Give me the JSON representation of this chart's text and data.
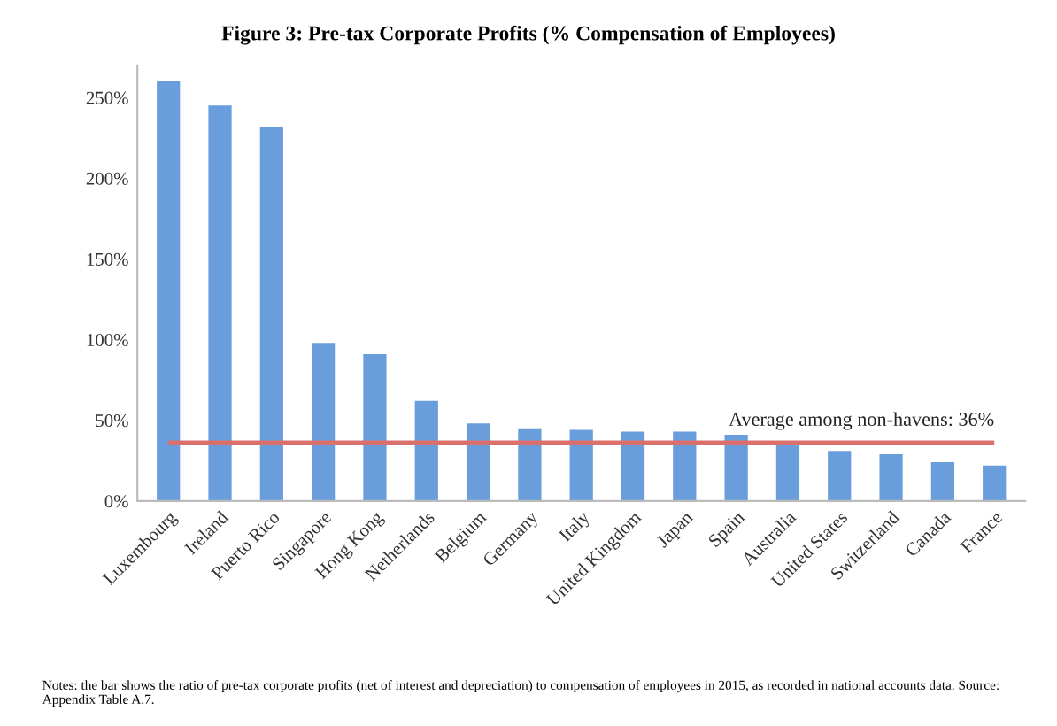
{
  "chart_data": {
    "type": "bar",
    "title": "Figure 3: Pre-tax Corporate Profits (% Compensation of Employees)",
    "categories": [
      "Luxembourg",
      "Ireland",
      "Puerto Rico",
      "Singapore",
      "Hong Kong",
      "Netherlands",
      "Belgium",
      "Germany",
      "Italy",
      "United Kingdom",
      "Japan",
      "Spain",
      "Australia",
      "United States",
      "Switzerland",
      "Canada",
      "France"
    ],
    "values": [
      260,
      245,
      232,
      98,
      91,
      62,
      48,
      45,
      44,
      43,
      43,
      41,
      37,
      31,
      29,
      24,
      22
    ],
    "color": "#6a9ddc",
    "ylim": [
      0,
      270
    ],
    "yticks": [
      {
        "value": 0,
        "label": "0%"
      },
      {
        "value": 50,
        "label": "50%"
      },
      {
        "value": 100,
        "label": "100%"
      },
      {
        "value": 150,
        "label": "150%"
      },
      {
        "value": 200,
        "label": "200%"
      },
      {
        "value": 250,
        "label": "250%"
      }
    ],
    "grid": false,
    "ref_lines": [
      {
        "axis": "y",
        "value": 36,
        "label": "Average among non-havens: 36%",
        "color": "#d9706b"
      }
    ],
    "annotations": [
      "Notes: the bar shows the ratio of pre-tax corporate profits (net of interest and depreciation) to compensation of employees in 2015, as recorded in national accounts data. Source: Appendix Table A.7."
    ]
  }
}
